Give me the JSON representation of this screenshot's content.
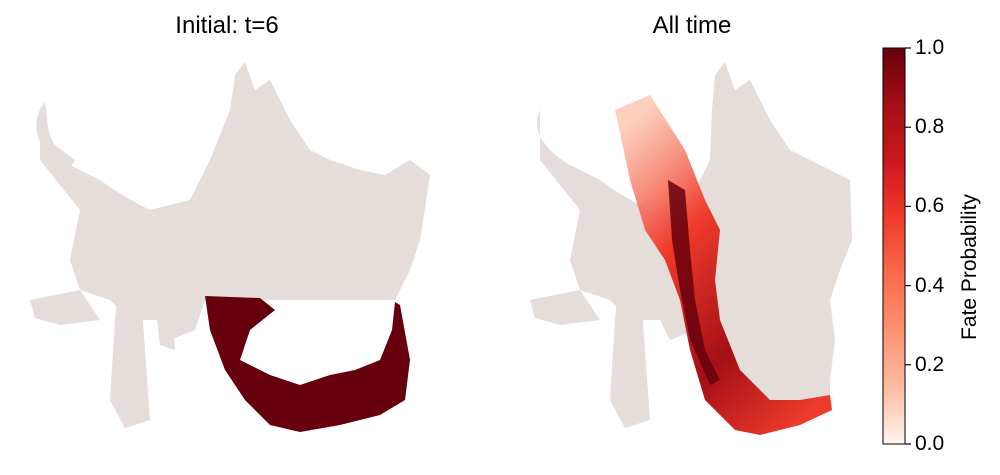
{
  "chart_data": [
    {
      "type": "scatter",
      "title": "Initial: t=6",
      "background_color": "#e5ddd9",
      "highlight_color": "#67000d",
      "highlighted_region": "bottom lobe of embedding"
    },
    {
      "type": "scatter",
      "title": "All time",
      "background_color": "#e5ddd9",
      "colormap": "Reds",
      "highlighted_region": "diagonal band from center-top to bottom-right"
    }
  ],
  "colorbar": {
    "label": "Fate Probability",
    "ticks": [
      "0.0",
      "0.2",
      "0.4",
      "0.6",
      "0.8",
      "1.0"
    ],
    "range": [
      0.0,
      1.0
    ],
    "colors": [
      "#fff5f0",
      "#fcbba1",
      "#fc9272",
      "#fb6a4a",
      "#ef3b2c",
      "#cb181d",
      "#a50f15",
      "#67000d"
    ]
  }
}
